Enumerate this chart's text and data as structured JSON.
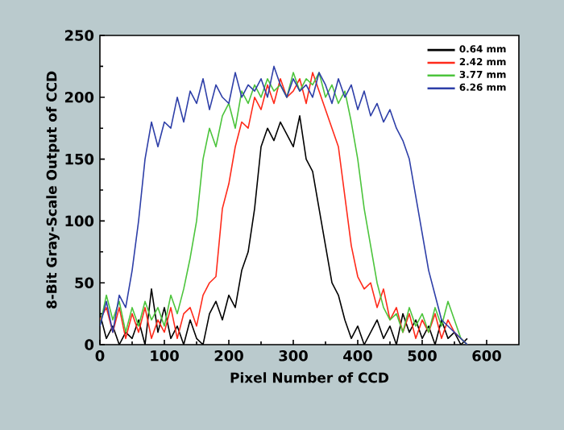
{
  "chart_data": {
    "type": "line",
    "xlabel": "Pixel Number of CCD",
    "ylabel": "8-Bit Gray-Scale Output of CCD",
    "x": [
      0,
      10,
      20,
      30,
      40,
      50,
      60,
      70,
      80,
      90,
      100,
      110,
      120,
      130,
      140,
      150,
      160,
      170,
      180,
      190,
      200,
      210,
      220,
      230,
      240,
      250,
      260,
      270,
      280,
      290,
      300,
      310,
      320,
      330,
      340,
      350,
      360,
      370,
      380,
      390,
      400,
      410,
      420,
      430,
      440,
      450,
      460,
      470,
      480,
      490,
      500,
      510,
      520,
      530,
      540,
      550,
      560,
      570
    ],
    "series": [
      {
        "name": "0.64 mm",
        "color": "#000000",
        "values": [
          25,
          5,
          15,
          0,
          10,
          5,
          20,
          0,
          45,
          10,
          30,
          5,
          15,
          0,
          20,
          5,
          0,
          25,
          35,
          20,
          40,
          30,
          60,
          75,
          110,
          160,
          175,
          165,
          180,
          170,
          160,
          185,
          150,
          140,
          110,
          80,
          50,
          40,
          20,
          5,
          15,
          0,
          10,
          20,
          5,
          15,
          0,
          25,
          10,
          20,
          5,
          15,
          0,
          20,
          5,
          10,
          0,
          5
        ]
      },
      {
        "name": "2.42 mm",
        "color": "#ff2a1a",
        "values": [
          20,
          30,
          10,
          30,
          5,
          25,
          10,
          30,
          5,
          20,
          10,
          30,
          5,
          25,
          30,
          15,
          40,
          50,
          55,
          110,
          130,
          160,
          180,
          175,
          200,
          190,
          210,
          195,
          215,
          200,
          205,
          215,
          195,
          220,
          205,
          190,
          175,
          160,
          120,
          80,
          55,
          45,
          50,
          30,
          45,
          20,
          30,
          10,
          25,
          5,
          20,
          10,
          25,
          5,
          20,
          10,
          5,
          0
        ]
      },
      {
        "name": "3.77 mm",
        "color": "#4cc43c",
        "values": [
          15,
          40,
          20,
          35,
          10,
          30,
          15,
          35,
          20,
          30,
          15,
          40,
          25,
          45,
          70,
          100,
          150,
          175,
          160,
          185,
          195,
          175,
          205,
          195,
          210,
          200,
          215,
          205,
          210,
          200,
          220,
          205,
          215,
          210,
          220,
          200,
          210,
          195,
          205,
          180,
          150,
          110,
          80,
          50,
          30,
          20,
          25,
          10,
          30,
          15,
          25,
          10,
          30,
          15,
          35,
          20,
          5,
          0
        ]
      },
      {
        "name": "6.26 mm",
        "color": "#2e3fa8",
        "values": [
          15,
          35,
          10,
          40,
          30,
          60,
          100,
          150,
          180,
          160,
          180,
          175,
          200,
          180,
          205,
          195,
          215,
          190,
          210,
          200,
          195,
          220,
          200,
          210,
          205,
          215,
          200,
          225,
          210,
          200,
          215,
          205,
          210,
          200,
          220,
          210,
          195,
          215,
          200,
          210,
          190,
          205,
          185,
          195,
          180,
          190,
          175,
          165,
          150,
          120,
          90,
          60,
          40,
          20,
          15,
          10,
          5,
          0
        ]
      }
    ],
    "xlim": [
      0,
      650
    ],
    "ylim": [
      0,
      250
    ],
    "xticks": [
      0,
      100,
      200,
      300,
      400,
      500,
      600
    ],
    "yticks": [
      0,
      50,
      100,
      150,
      200,
      250
    ],
    "legend": "top right",
    "grid": false,
    "marker": "none",
    "line_style": "solid"
  }
}
